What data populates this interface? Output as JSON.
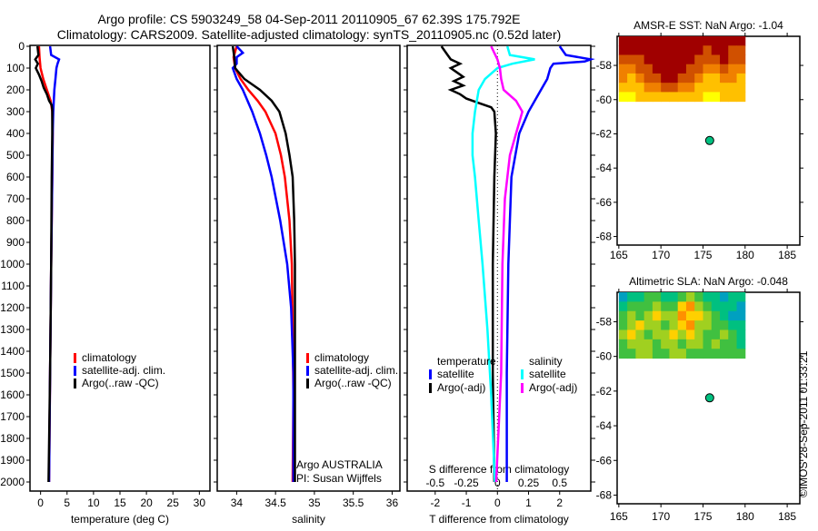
{
  "title": {
    "line1": "Argo profile: CS 5903249_58 04-Sep-2011 20110905_67 62.39S 175.792E",
    "line2": "Climatology: CARS2009. Satellite-adjusted climatology: synTS_20110905.nc (0.52d later)"
  },
  "footer_text": "©IMOS 28-Sep-2011 01:33:21",
  "colors": {
    "climatology": "#ff0000",
    "satellite": "#0000ff",
    "argo": "#000000",
    "s_satellite": "#00ffff",
    "s_argo": "#ff00ff",
    "float_marker": "#00c080"
  },
  "chart_data": [
    {
      "type": "line",
      "xlabel": "temperature (deg C)",
      "xlim": [
        -2,
        32
      ],
      "xticks": [
        "0",
        "5",
        "10",
        "15",
        "20",
        "25",
        "30"
      ],
      "xtick_values": [
        0,
        5,
        10,
        15,
        20,
        25,
        30
      ],
      "ylim": [
        2060,
        0
      ],
      "yticks": [
        "0",
        "100",
        "200",
        "300",
        "400",
        "500",
        "600",
        "700",
        "800",
        "900",
        "1000",
        "1100",
        "1200",
        "1300",
        "1400",
        "1500",
        "1600",
        "1700",
        "1800",
        "1900",
        "2000"
      ],
      "legend": [
        "climatology",
        "satellite-adj. clim.",
        "Argo(..raw -QC)"
      ],
      "series": [
        {
          "name": "climatology",
          "color": "#ff0000",
          "depth": [
            0,
            50,
            100,
            150,
            200,
            250,
            300,
            400,
            600,
            1000,
            1500,
            2000
          ],
          "values": [
            -0.3,
            -0.2,
            0.0,
            0.5,
            1.2,
            1.9,
            2.2,
            2.3,
            2.2,
            2.0,
            1.8,
            1.6
          ]
        },
        {
          "name": "satellite-adj. clim.",
          "color": "#0000ff",
          "depth": [
            0,
            40,
            60,
            80,
            100,
            150,
            200,
            250,
            300,
            400,
            600,
            1000,
            1500,
            2000
          ],
          "values": [
            1.8,
            2.0,
            3.5,
            3.2,
            3.0,
            2.8,
            2.6,
            2.5,
            2.4,
            2.3,
            2.2,
            2.0,
            1.8,
            1.6
          ]
        },
        {
          "name": "Argo(..raw -QC)",
          "color": "#000000",
          "depth": [
            0,
            40,
            60,
            80,
            100,
            130,
            160,
            190,
            220,
            250,
            270,
            290,
            320,
            400,
            600,
            1000,
            1500,
            2000
          ],
          "values": [
            -0.6,
            -0.4,
            -1.0,
            -0.5,
            -0.9,
            -0.3,
            0.2,
            0.6,
            1.2,
            1.6,
            2.1,
            2.2,
            2.2,
            2.2,
            2.1,
            2.0,
            1.8,
            1.5
          ]
        }
      ]
    },
    {
      "type": "line",
      "xlabel": "salinity",
      "xlim": [
        33.75,
        36.1
      ],
      "xticks": [
        "34",
        "34.5",
        "35",
        "35.5",
        "36"
      ],
      "xtick_values": [
        34,
        34.5,
        35,
        35.5,
        36
      ],
      "ylim": [
        2060,
        0
      ],
      "legend": [
        "climatology",
        "satellite-adj. clim.",
        "Argo(..raw -QC)"
      ],
      "annotations": [
        "Argo AUSTRALIA",
        "PI: Susan Wijffels"
      ],
      "series": [
        {
          "name": "climatology",
          "color": "#ff0000",
          "depth": [
            0,
            50,
            100,
            150,
            200,
            250,
            300,
            400,
            500,
            600,
            800,
            1000,
            1300,
            1600,
            2000
          ],
          "values": [
            34.0,
            33.96,
            33.98,
            34.05,
            34.15,
            34.27,
            34.37,
            34.5,
            34.57,
            34.62,
            34.68,
            34.71,
            34.72,
            34.73,
            34.72
          ]
        },
        {
          "name": "satellite-adj. clim.",
          "color": "#0000ff",
          "depth": [
            0,
            30,
            50,
            80,
            100,
            150,
            200,
            300,
            400,
            500,
            600,
            800,
            1000,
            1200,
            1500,
            2000
          ],
          "values": [
            34.0,
            34.08,
            34.0,
            34.0,
            33.95,
            34.0,
            34.08,
            34.2,
            34.3,
            34.38,
            34.45,
            34.56,
            34.65,
            34.7,
            34.73,
            34.73
          ]
        },
        {
          "name": "Argo(..raw -QC)",
          "color": "#000000",
          "depth": [
            0,
            50,
            100,
            150,
            200,
            250,
            300,
            400,
            500,
            600,
            800,
            1000,
            1300,
            1600,
            2000
          ],
          "values": [
            33.95,
            33.97,
            33.98,
            34.1,
            34.3,
            34.45,
            34.55,
            34.63,
            34.68,
            34.72,
            34.74,
            34.75,
            34.75,
            34.75,
            34.75
          ]
        }
      ]
    },
    {
      "type": "line",
      "xlabel": "T difference from climatology",
      "xlim": [
        -2.9,
        3.0
      ],
      "xticks": [
        "-2",
        "-1",
        "0",
        "1",
        "2"
      ],
      "xtick_values": [
        -2,
        -1,
        0,
        1,
        2
      ],
      "x2label": "S difference from climatology",
      "x2lim": [
        -1.45,
        1.5
      ],
      "x2ticks": [
        "-0.5",
        "-0.25",
        "0",
        "0.25",
        "0.5"
      ],
      "x2tick_values": [
        -0.5,
        -0.25,
        0,
        0.25,
        0.5
      ],
      "ylim": [
        2060,
        0
      ],
      "legend_temperature": {
        "title": "temperature",
        "items": [
          "satellite",
          "Argo(-adj)"
        ]
      },
      "legend_salinity": {
        "title": "salinity",
        "items": [
          "satellite",
          "Argo(-adj)"
        ]
      },
      "series": [
        {
          "name": "T satellite",
          "axis": "T",
          "color": "#0000ff",
          "depth": [
            0,
            40,
            60,
            70,
            80,
            100,
            150,
            200,
            300,
            400,
            600,
            1000,
            1500,
            2000
          ],
          "values": [
            2.0,
            2.2,
            3.0,
            2.8,
            1.8,
            1.7,
            1.6,
            1.4,
            1.0,
            0.7,
            0.45,
            0.35,
            0.3,
            0.3
          ]
        },
        {
          "name": "T Argo(-adj)",
          "axis": "T",
          "color": "#000000",
          "depth": [
            0,
            40,
            60,
            80,
            100,
            120,
            140,
            160,
            180,
            200,
            220,
            240,
            260,
            280,
            300,
            400,
            600,
            1000,
            1500,
            2000
          ],
          "values": [
            -1.8,
            -1.6,
            -1.5,
            -1.2,
            -1.5,
            -1.3,
            -1.1,
            -1.4,
            -1.1,
            -1.5,
            -1.2,
            -1.0,
            -0.6,
            -0.2,
            -0.1,
            -0.05,
            -0.1,
            -0.15,
            -0.15,
            -0.1
          ]
        },
        {
          "name": "S satellite",
          "axis": "S",
          "color": "#00ffff",
          "depth": [
            0,
            40,
            60,
            80,
            100,
            150,
            200,
            300,
            400,
            500,
            600,
            800,
            1000,
            1300,
            1600,
            2000
          ],
          "values": [
            0.08,
            0.1,
            0.3,
            0.12,
            0.0,
            -0.1,
            -0.15,
            -0.18,
            -0.2,
            -0.2,
            -0.18,
            -0.15,
            -0.12,
            -0.08,
            -0.05,
            -0.02
          ]
        },
        {
          "name": "S Argo(-adj)",
          "axis": "S",
          "color": "#ff00ff",
          "depth": [
            0,
            60,
            100,
            150,
            200,
            250,
            300,
            400,
            500,
            700,
            1000,
            1500,
            2000
          ],
          "values": [
            -0.05,
            0.0,
            0.02,
            0.03,
            0.05,
            0.15,
            0.2,
            0.15,
            0.1,
            0.06,
            0.04,
            0.03,
            -0.01
          ]
        }
      ]
    },
    {
      "type": "heatmap",
      "title": "AMSR-E SST: NaN Argo: -1.04",
      "xlim": [
        164.8,
        186.5
      ],
      "ylim": [
        -68.5,
        -56.3
      ],
      "xticks": [
        "165",
        "170",
        "175",
        "180",
        "185"
      ],
      "xtick_values": [
        165,
        170,
        175,
        180,
        185
      ],
      "yticks": [
        "-58",
        "-60",
        "-62",
        "-64",
        "-66",
        "-68"
      ],
      "ytick_values": [
        -58,
        -60,
        -62,
        -64,
        -66,
        -68
      ],
      "grid_lon": [
        165,
        180
      ],
      "grid_lat": [
        -56.3,
        -60.1
      ],
      "palette": [
        "#ffff00",
        "#ffc000",
        "#f08000",
        "#d05000",
        "#a00000"
      ],
      "values": [
        [
          4,
          4,
          4,
          4,
          4,
          4,
          4,
          4,
          4,
          4,
          4,
          4,
          4,
          4,
          4
        ],
        [
          4,
          4,
          4,
          4,
          4,
          4,
          4,
          4,
          4,
          4,
          3,
          4,
          4,
          3,
          3
        ],
        [
          3,
          3,
          3,
          4,
          4,
          4,
          4,
          4,
          4,
          3,
          3,
          3,
          4,
          3,
          3
        ],
        [
          2,
          2,
          3,
          3,
          4,
          4,
          4,
          4,
          3,
          3,
          2,
          2,
          3,
          2,
          2
        ],
        [
          2,
          1,
          2,
          3,
          3,
          4,
          4,
          3,
          3,
          2,
          1,
          1,
          2,
          2,
          1
        ],
        [
          1,
          1,
          1,
          2,
          2,
          3,
          3,
          2,
          2,
          1,
          1,
          1,
          1,
          1,
          1
        ],
        [
          0,
          0,
          1,
          1,
          1,
          1,
          1,
          1,
          1,
          1,
          0,
          0,
          1,
          1,
          1
        ]
      ],
      "float_position": {
        "lon": 175.792,
        "lat": -62.39
      }
    },
    {
      "type": "heatmap",
      "title": "Altimetric SLA: NaN Argo: -0.048",
      "xlim": [
        164.8,
        186.5
      ],
      "ylim": [
        -68.5,
        -56.3
      ],
      "xticks": [
        "165",
        "170",
        "175",
        "180",
        "185"
      ],
      "xtick_values": [
        165,
        170,
        175,
        180,
        185
      ],
      "yticks": [
        "-58",
        "-60",
        "-62",
        "-64",
        "-66",
        "-68"
      ],
      "ytick_values": [
        -58,
        -60,
        -62,
        -64,
        -66,
        -68
      ],
      "grid_lon": [
        165,
        180
      ],
      "grid_lat": [
        -56.3,
        -60.1
      ],
      "palette": [
        "#00a0c0",
        "#00c080",
        "#40c040",
        "#a0d020",
        "#ffd000",
        "#ff9000"
      ],
      "values": [
        [
          0,
          1,
          1,
          2,
          2,
          1,
          1,
          2,
          3,
          2,
          1,
          1,
          0,
          1,
          1
        ],
        [
          1,
          2,
          2,
          2,
          3,
          2,
          2,
          4,
          5,
          3,
          2,
          1,
          1,
          1,
          0
        ],
        [
          2,
          3,
          2,
          3,
          4,
          3,
          3,
          5,
          4,
          4,
          3,
          2,
          1,
          0,
          0
        ],
        [
          2,
          3,
          4,
          3,
          3,
          2,
          3,
          4,
          5,
          3,
          3,
          2,
          2,
          1,
          1
        ],
        [
          3,
          4,
          3,
          2,
          3,
          3,
          4,
          3,
          4,
          3,
          2,
          2,
          3,
          2,
          1
        ],
        [
          2,
          3,
          3,
          3,
          2,
          3,
          3,
          2,
          3,
          3,
          2,
          3,
          2,
          2,
          1
        ],
        [
          2,
          2,
          3,
          3,
          2,
          2,
          3,
          3,
          2,
          2,
          2,
          2,
          2,
          2,
          2
        ]
      ],
      "float_position": {
        "lon": 175.792,
        "lat": -62.39
      }
    }
  ]
}
